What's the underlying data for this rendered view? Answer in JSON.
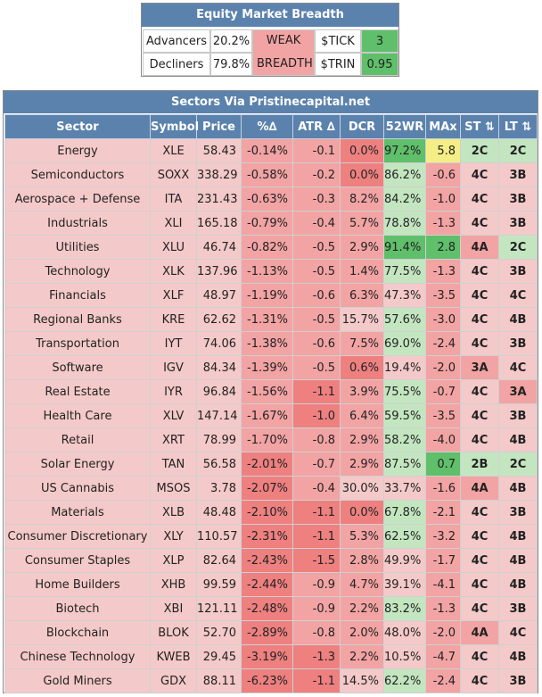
{
  "breadth": {
    "title": "Equity Market Breadth",
    "advancers_label": "Advancers",
    "advancers_value": "20.2%",
    "decliners_label": "Decliners",
    "decliners_value": "79.8%",
    "status": "WEAK BREADTH",
    "tick_label": "$TICK",
    "tick_value": "3",
    "trin_label": "$TRIN",
    "trin_value": "0.95"
  },
  "sectors": {
    "title": "Sectors Via Pristinecapital.net",
    "columns": [
      "Sector",
      "Symbol",
      "Price",
      "%∆",
      "ATR ∆",
      "DCR",
      "52WR",
      "MAx",
      "ST ⇅",
      "LT ⇅"
    ],
    "rows": [
      [
        "Energy",
        "XLE",
        "58.43",
        "-0.14%",
        "-0.1",
        "0.0%",
        "97.2%",
        "5.8",
        "2C",
        "2C"
      ],
      [
        "Semiconductors",
        "SOXX",
        "338.29",
        "-0.58%",
        "-0.2",
        "0.0%",
        "86.2%",
        "-0.6",
        "4C",
        "3B"
      ],
      [
        "Aerospace + Defense",
        "ITA",
        "231.43",
        "-0.63%",
        "-0.3",
        "8.2%",
        "84.2%",
        "-1.0",
        "4C",
        "3B"
      ],
      [
        "Industrials",
        "XLI",
        "165.18",
        "-0.79%",
        "-0.4",
        "5.7%",
        "78.8%",
        "-1.3",
        "4C",
        "3B"
      ],
      [
        "Utilities",
        "XLU",
        "46.74",
        "-0.82%",
        "-0.5",
        "2.9%",
        "91.4%",
        "2.8",
        "4A",
        "2C"
      ],
      [
        "Technology",
        "XLK",
        "137.96",
        "-1.13%",
        "-0.5",
        "1.4%",
        "77.5%",
        "-1.3",
        "4C",
        "3B"
      ],
      [
        "Financials",
        "XLF",
        "48.97",
        "-1.19%",
        "-0.6",
        "6.3%",
        "47.3%",
        "-3.5",
        "4C",
        "4C"
      ],
      [
        "Regional Banks",
        "KRE",
        "62.62",
        "-1.31%",
        "-0.5",
        "15.7%",
        "57.6%",
        "-3.0",
        "4C",
        "4B"
      ],
      [
        "Transportation",
        "IYT",
        "74.06",
        "-1.38%",
        "-0.6",
        "7.5%",
        "69.0%",
        "-2.4",
        "4C",
        "3B"
      ],
      [
        "Software",
        "IGV",
        "84.34",
        "-1.39%",
        "-0.5",
        "0.6%",
        "19.4%",
        "-2.0",
        "3A",
        "4C"
      ],
      [
        "Real Estate",
        "IYR",
        "96.84",
        "-1.56%",
        "-1.1",
        "3.9%",
        "75.5%",
        "-0.7",
        "4C",
        "3A"
      ],
      [
        "Health Care",
        "XLV",
        "147.14",
        "-1.67%",
        "-1.0",
        "6.4%",
        "59.5%",
        "-3.5",
        "4C",
        "3B"
      ],
      [
        "Retail",
        "XRT",
        "78.99",
        "-1.70%",
        "-0.8",
        "2.9%",
        "58.2%",
        "-4.0",
        "4C",
        "4B"
      ],
      [
        "Solar Energy",
        "TAN",
        "56.58",
        "-2.01%",
        "-0.7",
        "2.9%",
        "87.5%",
        "0.7",
        "2B",
        "2C"
      ],
      [
        "US Cannabis",
        "MSOS",
        "3.78",
        "-2.07%",
        "-0.4",
        "30.0%",
        "33.7%",
        "-1.6",
        "4A",
        "4B"
      ],
      [
        "Materials",
        "XLB",
        "48.48",
        "-2.10%",
        "-1.1",
        "0.0%",
        "67.8%",
        "-2.1",
        "4C",
        "3B"
      ],
      [
        "Consumer Discretionary",
        "XLY",
        "110.57",
        "-2.31%",
        "-1.1",
        "5.3%",
        "62.5%",
        "-3.2",
        "4C",
        "4B"
      ],
      [
        "Consumer Staples",
        "XLP",
        "82.64",
        "-2.43%",
        "-1.5",
        "2.8%",
        "49.9%",
        "-1.7",
        "4C",
        "4B"
      ],
      [
        "Home Builders",
        "XHB",
        "99.59",
        "-2.44%",
        "-0.9",
        "4.7%",
        "39.1%",
        "-4.1",
        "4C",
        "4B"
      ],
      [
        "Biotech",
        "XBI",
        "121.11",
        "-2.48%",
        "-0.9",
        "2.2%",
        "83.2%",
        "-1.3",
        "4C",
        "3B"
      ],
      [
        "Blockchain",
        "BLOK",
        "52.70",
        "-2.89%",
        "-0.8",
        "2.0%",
        "48.0%",
        "-2.0",
        "4A",
        "4C"
      ],
      [
        "Chinese Technology",
        "KWEB",
        "29.45",
        "-3.19%",
        "-1.3",
        "2.2%",
        "10.5%",
        "-4.7",
        "4C",
        "4B"
      ],
      [
        "Gold Miners",
        "GDX",
        "88.11",
        "-6.23%",
        "-1.1",
        "14.5%",
        "62.2%",
        "-2.4",
        "4C",
        "3B"
      ]
    ]
  },
  "chart_data": {
    "type": "table",
    "title": "Sectors Via Pristinecapital.net",
    "columns": [
      "Sector",
      "Symbol",
      "Price",
      "%∆",
      "ATR ∆",
      "DCR",
      "52WR",
      "MAx",
      "ST ⇅",
      "LT ⇅"
    ],
    "series_ref": "sectors.rows"
  },
  "colors": {
    "header_blue": "#5b82ad",
    "row_pink": "#f4c9c9",
    "light_red": "#f2a3a3",
    "red": "#ee8080",
    "light_green": "#c3e6c0",
    "green": "#5fbf6a",
    "yellow": "#f5ee86"
  }
}
